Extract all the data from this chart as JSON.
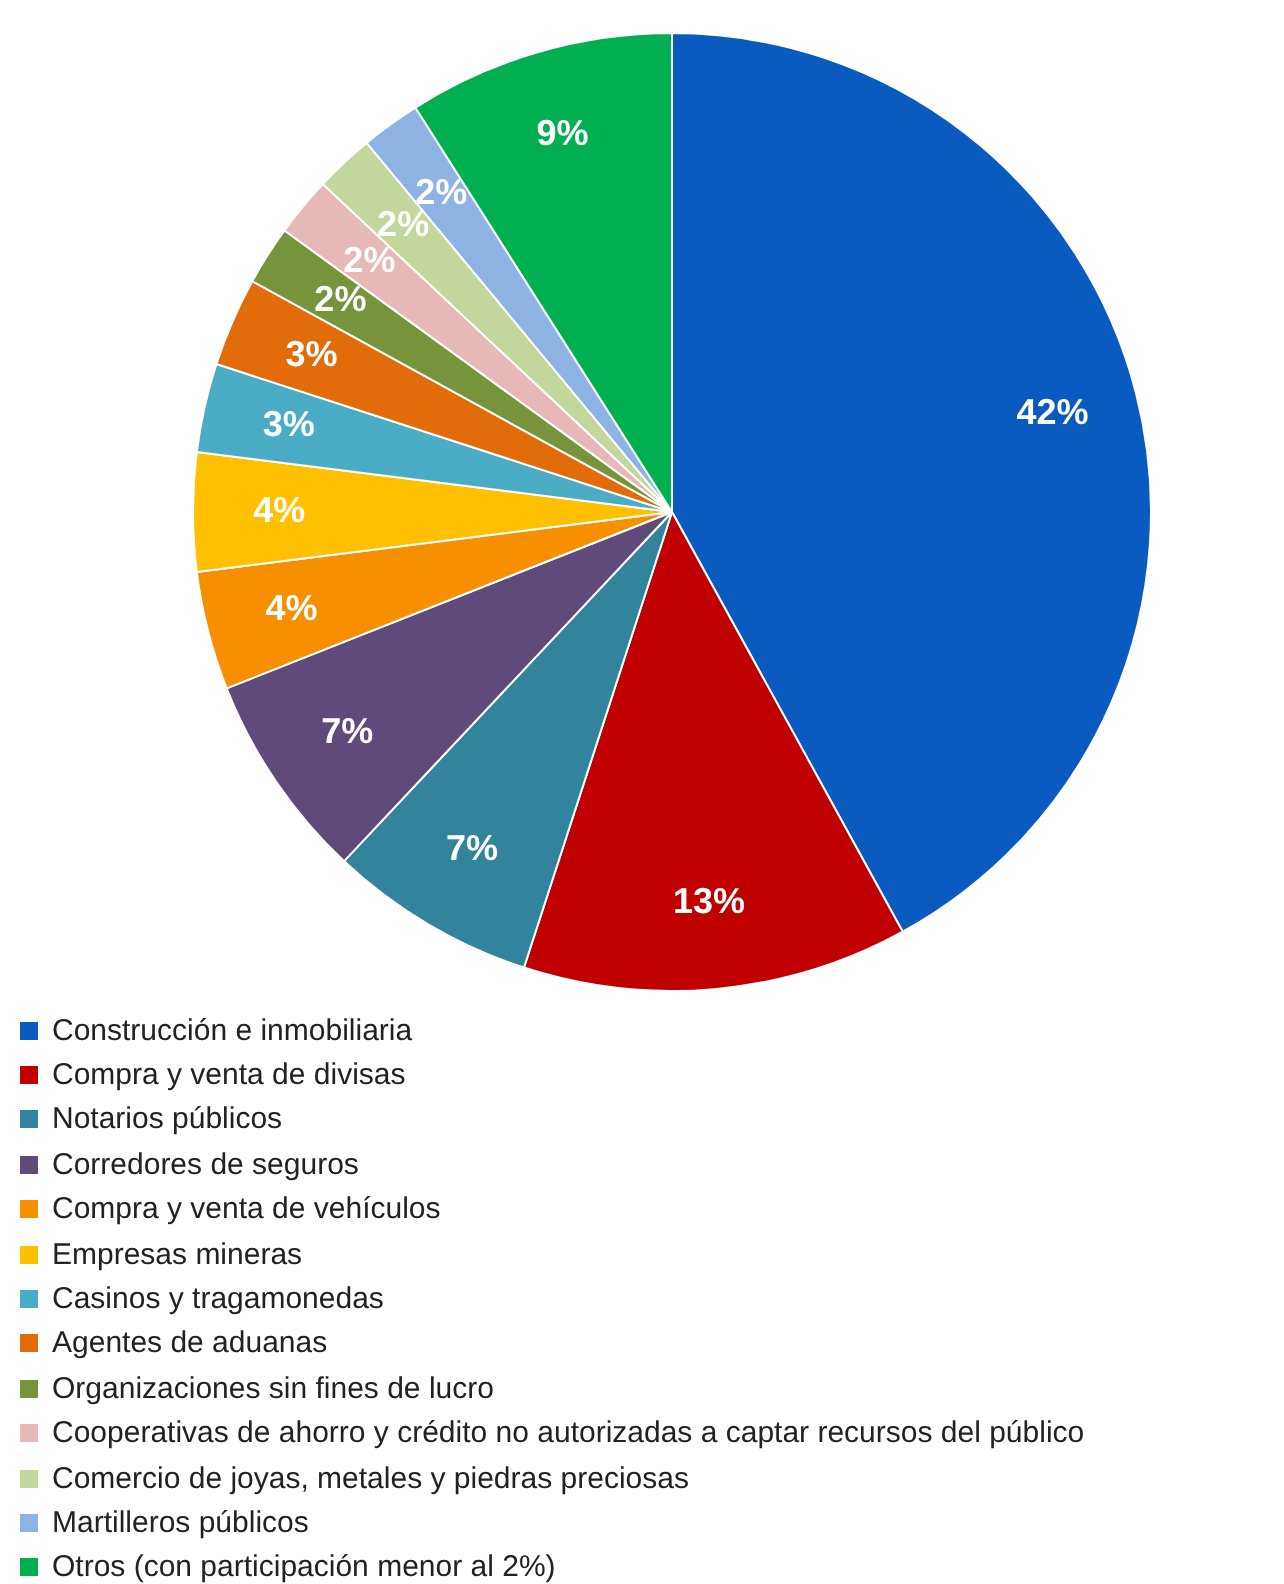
{
  "chart_data": {
    "type": "pie",
    "categories": [
      "Construcción e inmobiliaria",
      "Compra y venta de divisas",
      "Notarios públicos",
      "Corredores de seguros",
      "Compra y venta de vehículos",
      "Empresas mineras",
      "Casinos y tragamonedas",
      "Agentes de aduanas",
      "Organizaciones sin fines de lucro",
      "Cooperativas de ahorro y crédito no autorizadas a captar recursos del público",
      "Comercio de joyas, metales y piedras preciosas",
      "Martilleros públicos",
      "Otros (con participación menor al 2%)"
    ],
    "values": [
      42,
      13,
      7,
      7,
      4,
      4,
      3,
      3,
      2,
      2,
      2,
      2,
      9
    ],
    "value_labels": [
      "42%",
      "13%",
      "7%",
      "7%",
      "4%",
      "4%",
      "3%",
      "3%",
      "2%",
      "2%",
      "2%",
      "2%",
      "9%"
    ],
    "colors": [
      "#0a5bbf",
      "#c00000",
      "#31849b",
      "#604a7b",
      "#f79000",
      "#ffc000",
      "#4bacc6",
      "#e36c0a",
      "#77933c",
      "#e6b9b8",
      "#c3d69b",
      "#8db3e2",
      "#00b050"
    ],
    "legend": "bottom"
  }
}
